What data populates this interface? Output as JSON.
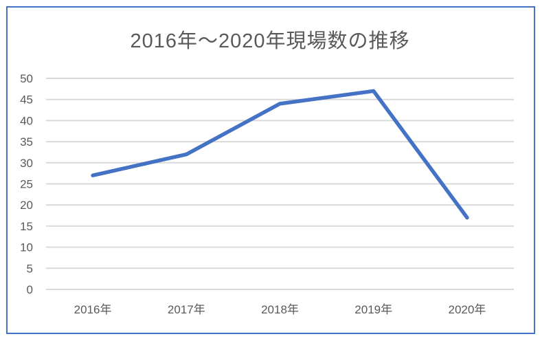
{
  "chart_data": {
    "type": "line",
    "title": "2016年～2020年現場数の推移",
    "categories": [
      "2016年",
      "2017年",
      "2018年",
      "2019年",
      "2020年"
    ],
    "values": [
      27,
      32,
      44,
      47,
      17
    ],
    "xlabel": "",
    "ylabel": "",
    "ylim": [
      0,
      50
    ],
    "yticks": [
      0,
      5,
      10,
      15,
      20,
      25,
      30,
      35,
      40,
      45,
      50
    ],
    "grid": "horizontal",
    "legend": "none",
    "colors": {
      "line": "#4472C4",
      "frame_border": "#4472C4",
      "gridline": "#D9D9D9",
      "axis_text": "#595959",
      "title_text": "#595959"
    }
  }
}
